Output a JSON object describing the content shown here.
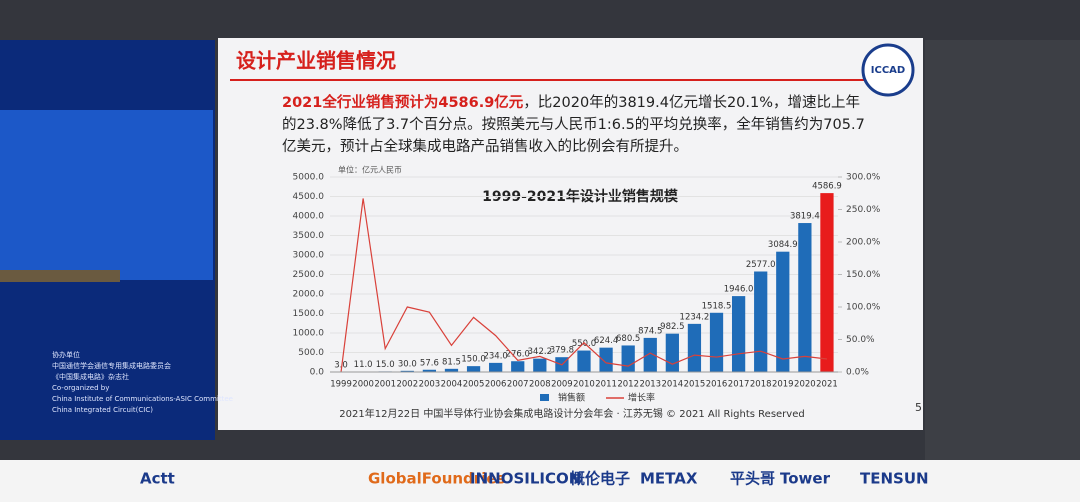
{
  "slide": {
    "title": "设计产业销售情况",
    "highlight": "2021全行业销售预计为4586.9亿元",
    "body": "，比2020年的3819.4亿元增长20.1%，增速比上年的23.8%降低了3.7个百分点。按照美元与人民币1:6.5的平均兑换率，全年销售约为705.7亿美元，预计占全球集成电路产品销售收入的比例会有所提升。",
    "logo": "ICCAD",
    "footer": "2021年12月22日 中国半导体行业协会集成电路设计分会年会 · 江苏无锡 © 2021 All Rights Reserved",
    "page": "5"
  },
  "stage": {
    "left_screen": [
      "协办单位",
      "中国通信学会通信专用集成电路委员会",
      "《中国集成电路》杂志社",
      "Co-organized by",
      "China Institute of Communications-ASIC Committee",
      "China Integrated Circuit(CIC)"
    ],
    "sponsors": [
      "Actt",
      "GlobalFoundries",
      "INNOSILICON",
      "概伦电子",
      "METAX",
      "平头哥",
      "Tower",
      "TENSUN"
    ]
  },
  "chart_data": {
    "type": "bar",
    "title": "1999-2021年设计业销售规模",
    "unit": "单位：亿元人民币",
    "categories": [
      "1999",
      "2000",
      "2001",
      "2002",
      "2003",
      "2004",
      "2005",
      "2006",
      "2007",
      "2008",
      "2009",
      "2010",
      "2011",
      "2012",
      "2013",
      "2014",
      "2015",
      "2016",
      "2017",
      "2018",
      "2019",
      "2020",
      "2021"
    ],
    "series": [
      {
        "name": "销售额",
        "color": "#1f6cb8",
        "type": "bar",
        "bar_colors": [
          "#1f6cb8",
          "#1f6cb8",
          "#1f6cb8",
          "#1f6cb8",
          "#1f6cb8",
          "#1f6cb8",
          "#1f6cb8",
          "#1f6cb8",
          "#1f6cb8",
          "#1f6cb8",
          "#1f6cb8",
          "#1f6cb8",
          "#1f6cb8",
          "#1f6cb8",
          "#1f6cb8",
          "#1f6cb8",
          "#1f6cb8",
          "#1f6cb8",
          "#1f6cb8",
          "#1f6cb8",
          "#1f6cb8",
          "#1f6cb8",
          "#e81c1c"
        ],
        "values": [
          3.0,
          11.0,
          15.0,
          30.0,
          57.6,
          81.5,
          150.0,
          234.0,
          276.0,
          342.2,
          379.8,
          550.0,
          624.4,
          680.5,
          874.5,
          982.5,
          1234.2,
          1518.5,
          1946.0,
          2577.0,
          3084.9,
          3819.4,
          4586.9
        ],
        "value_labels": [
          "3.0",
          "11.0",
          "15.0",
          "30.0",
          "57.6",
          "81.5",
          "150.0",
          "234.0",
          "276.0",
          "342.2",
          "379.8",
          "550.0",
          "624.4",
          "680.5",
          "874.5",
          "982.5",
          "1234.2",
          "1518.5",
          "1946.0",
          "2577.0",
          "3084.9",
          "3819.4",
          "4586.9"
        ]
      },
      {
        "name": "增长率",
        "color": "#d9413a",
        "type": "line",
        "axis": "y2",
        "values": [
          0,
          267,
          36,
          100,
          92,
          41,
          84,
          56,
          18,
          24,
          11,
          45,
          14,
          9,
          29,
          12,
          26,
          23,
          28,
          32,
          20,
          24,
          20
        ]
      }
    ],
    "ylim": [
      0,
      5000
    ],
    "yticks": [
      {
        "value": 0,
        "label": "0.0"
      },
      {
        "value": 500,
        "label": "500.0"
      },
      {
        "value": 1000,
        "label": "1000.0"
      },
      {
        "value": 1500,
        "label": "1500.0"
      },
      {
        "value": 2000,
        "label": "2000.0"
      },
      {
        "value": 2500,
        "label": "2500.0"
      },
      {
        "value": 3000,
        "label": "3000.0"
      },
      {
        "value": 3500,
        "label": "3500.0"
      },
      {
        "value": 4000,
        "label": "4000.0"
      },
      {
        "value": 4500,
        "label": "4500.0"
      },
      {
        "value": 5000,
        "label": "5000.0"
      }
    ],
    "y2lim": [
      0,
      300
    ],
    "y2ticks": [
      {
        "value": 0,
        "label": "0.0%"
      },
      {
        "value": 50,
        "label": "50.0%"
      },
      {
        "value": 100,
        "label": "100.0%"
      },
      {
        "value": 150,
        "label": "150.0%"
      },
      {
        "value": 200,
        "label": "200.0%"
      },
      {
        "value": 250,
        "label": "250.0%"
      },
      {
        "value": 300,
        "label": "300.0%"
      }
    ],
    "grid": true,
    "legend": "bottom"
  }
}
